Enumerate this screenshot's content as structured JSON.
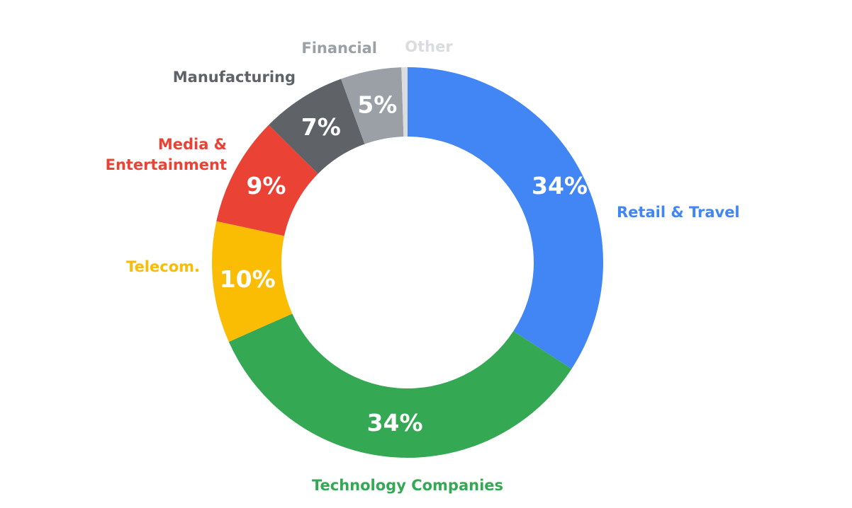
{
  "chart_data": {
    "type": "pie",
    "variant": "donut",
    "title": "",
    "legend": "labels placed next to each slice",
    "slices": [
      {
        "label": "Retail & Travel",
        "value": 34,
        "value_label": "34%",
        "color": "#4285F4"
      },
      {
        "label": "Technology Companies",
        "value": 34,
        "value_label": "34%",
        "color": "#34A853"
      },
      {
        "label": "Telecom.",
        "value": 10,
        "value_label": "10%",
        "color": "#FBBC04"
      },
      {
        "label": "Media & Entertainment",
        "label_lines": [
          "Media &",
          "Entertainment"
        ],
        "value": 9,
        "value_label": "9%",
        "color": "#EA4335"
      },
      {
        "label": "Manufacturing",
        "value": 7,
        "value_label": "7%",
        "color": "#5F6368"
      },
      {
        "label": "Financial",
        "value": 5,
        "value_label": "5%",
        "color": "#9AA0A6"
      },
      {
        "label": "Other",
        "value": 0.5,
        "value_label": "",
        "color": "#DADCE0"
      }
    ]
  }
}
